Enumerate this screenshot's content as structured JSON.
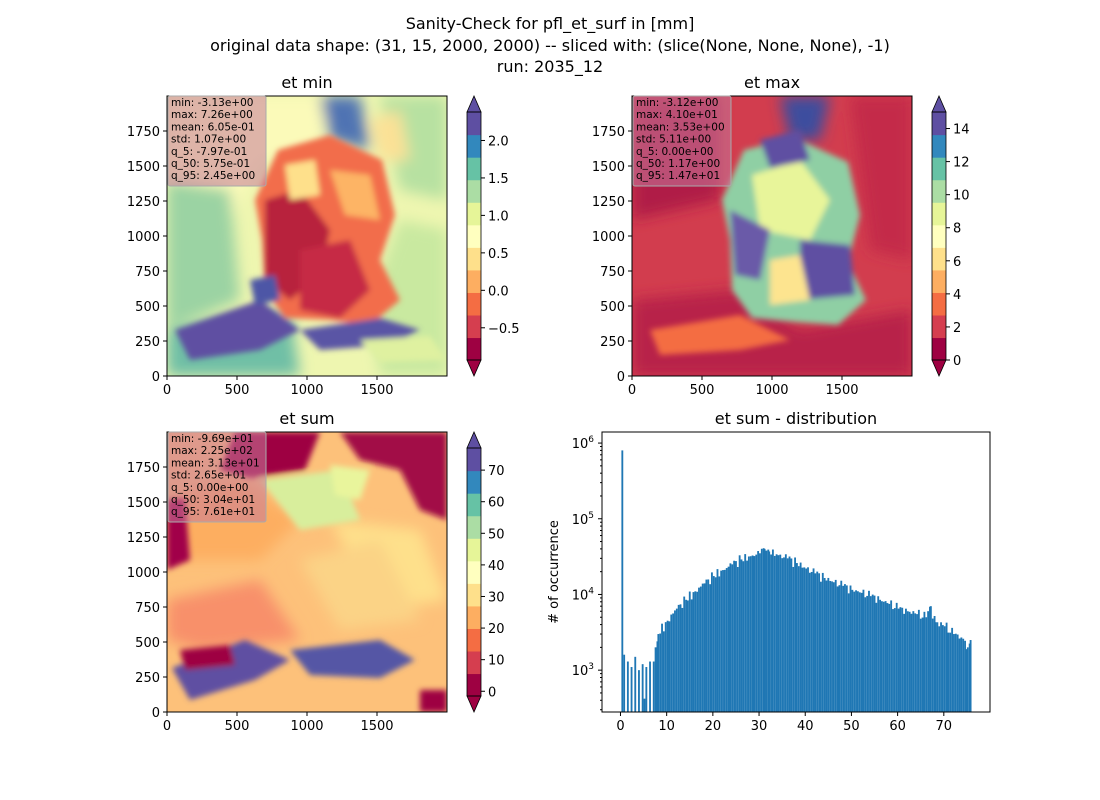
{
  "figure": {
    "title_lines": [
      "Sanity-Check for pfl_et_surf in [mm]",
      "original data shape: (31, 15, 2000, 2000) -- sliced with: (slice(None, None, None), -1)",
      "run: 2035_12"
    ]
  },
  "colors": {
    "spectral_cmap": [
      "#9e0142",
      "#d53e4f",
      "#f46d43",
      "#fdae61",
      "#fee08b",
      "#ffffbf",
      "#e6f598",
      "#abdda4",
      "#66c2a5",
      "#3288bd",
      "#5e4fa2"
    ],
    "hist_bar": "#1f77b4",
    "stats_box": "#c77a9a",
    "axis": "#000000"
  },
  "chart_data": [
    {
      "type": "heatmap",
      "title": "et min",
      "x_ticks": [
        "0",
        "500",
        "1000",
        "1500"
      ],
      "y_ticks": [
        "0",
        "250",
        "500",
        "750",
        "1000",
        "1250",
        "1500",
        "1750"
      ],
      "xlim": [
        0,
        2000
      ],
      "ylim": [
        0,
        2000
      ],
      "colorbar": {
        "range": [
          -0.93,
          2.38
        ],
        "ticks": [
          "−0.5",
          "0.0",
          "0.5",
          "1.0",
          "1.5",
          "2.0"
        ],
        "tick_values": [
          -0.5,
          0,
          0.5,
          1,
          1.5,
          2
        ],
        "extend": "both"
      },
      "stats": [
        "min: -3.13e+00",
        "max: 7.26e+00",
        "mean: 6.05e-01",
        "std: 1.07e+00",
        "q_5: -7.97e-01",
        "q_50: 5.75e-01",
        "q_95: 2.45e+00"
      ]
    },
    {
      "type": "heatmap",
      "title": "et max",
      "x_ticks": [
        "0",
        "500",
        "1000",
        "1500"
      ],
      "y_ticks": [
        "0",
        "250",
        "500",
        "750",
        "1000",
        "1250",
        "1500",
        "1750"
      ],
      "xlim": [
        0,
        2000
      ],
      "ylim": [
        0,
        2000
      ],
      "colorbar": {
        "range": [
          0,
          15
        ],
        "ticks": [
          "0",
          "2",
          "4",
          "6",
          "8",
          "10",
          "12",
          "14"
        ],
        "tick_values": [
          0,
          2,
          4,
          6,
          8,
          10,
          12,
          14
        ],
        "extend": "both"
      },
      "stats": [
        "min: -3.12e+00",
        "max: 4.10e+01",
        "mean: 3.53e+00",
        "std: 5.11e+00",
        "q_5: 0.00e+00",
        "q_50: 1.17e+00",
        "q_95: 1.47e+01"
      ]
    },
    {
      "type": "heatmap",
      "title": "et sum",
      "x_ticks": [
        "0",
        "500",
        "1000",
        "1500"
      ],
      "y_ticks": [
        "0",
        "250",
        "500",
        "750",
        "1000",
        "1250",
        "1500",
        "1750"
      ],
      "xlim": [
        0,
        2000
      ],
      "ylim": [
        0,
        2000
      ],
      "colorbar": {
        "range": [
          -1.5,
          77
        ],
        "ticks": [
          "0",
          "10",
          "20",
          "30",
          "40",
          "50",
          "60",
          "70"
        ],
        "tick_values": [
          0,
          10,
          20,
          30,
          40,
          50,
          60,
          70
        ],
        "extend": "both"
      },
      "stats": [
        "min: -9.69e+01",
        "max: 2.25e+02",
        "mean: 3.13e+01",
        "std: 2.65e+01",
        "q_5: 0.00e+00",
        "q_50: 3.04e+01",
        "q_95: 7.61e+01"
      ]
    },
    {
      "type": "bar",
      "title": "et sum - distribution",
      "ylabel": "# of occurrence",
      "xlabel": "",
      "y_scale": "log",
      "xlim": [
        -4,
        80
      ],
      "ylim": [
        280,
        1400000
      ],
      "x_ticks": [
        "0",
        "10",
        "20",
        "30",
        "40",
        "50",
        "60",
        "70"
      ],
      "x_tick_values": [
        0,
        10,
        20,
        30,
        40,
        50,
        60,
        70
      ],
      "y_ticks": [
        {
          "base": "10",
          "exp": "3",
          "value": 1000
        },
        {
          "base": "10",
          "exp": "4",
          "value": 10000
        },
        {
          "base": "10",
          "exp": "5",
          "value": 100000
        },
        {
          "base": "10",
          "exp": "6",
          "value": 1000000
        }
      ],
      "bin_width": 0.4,
      "bins": [
        [
          0.2,
          800000
        ],
        [
          0.6,
          1600
        ],
        [
          1.4,
          1300
        ],
        [
          2.2,
          1100
        ],
        [
          3.0,
          1500
        ],
        [
          3.8,
          1000
        ],
        [
          4.6,
          1200
        ],
        [
          5.0,
          420
        ],
        [
          5.4,
          1100
        ],
        [
          6.2,
          1300
        ],
        [
          7.0,
          1300
        ],
        [
          8.0,
          3000
        ],
        [
          10,
          4500
        ],
        [
          12,
          6500
        ],
        [
          14,
          8500
        ],
        [
          16,
          11000
        ],
        [
          18,
          14000
        ],
        [
          20,
          17500
        ],
        [
          22,
          21000
        ],
        [
          24,
          25000
        ],
        [
          26,
          29000
        ],
        [
          28,
          32000
        ],
        [
          30,
          35000
        ],
        [
          31,
          40000
        ],
        [
          32,
          37000
        ],
        [
          34,
          33000
        ],
        [
          36,
          30000
        ],
        [
          38,
          26000
        ],
        [
          40,
          22000
        ],
        [
          42,
          19000
        ],
        [
          44,
          16500
        ],
        [
          46,
          14500
        ],
        [
          48,
          13000
        ],
        [
          50,
          11500
        ],
        [
          52,
          10500
        ],
        [
          54,
          9500
        ],
        [
          56,
          8500
        ],
        [
          58,
          7500
        ],
        [
          60,
          6500
        ],
        [
          62,
          6000
        ],
        [
          64,
          5500
        ],
        [
          66,
          5000
        ],
        [
          67,
          7000
        ],
        [
          68,
          4300
        ],
        [
          70,
          3800
        ],
        [
          72,
          3000
        ],
        [
          74,
          2600
        ],
        [
          75,
          2000
        ],
        [
          75.6,
          2500
        ]
      ]
    }
  ]
}
